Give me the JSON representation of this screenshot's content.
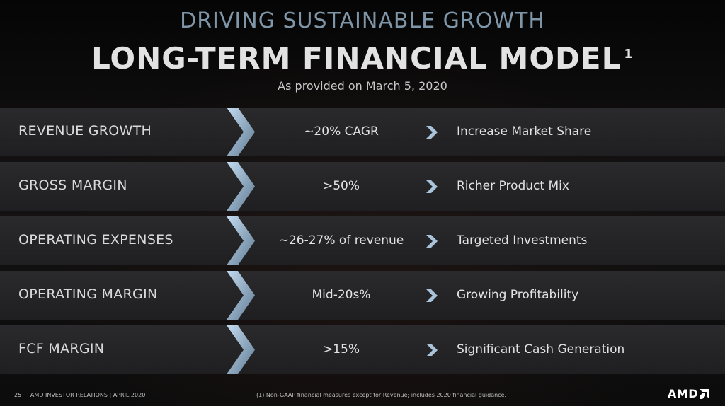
{
  "header": {
    "kicker": "DRIVING SUSTAINABLE GROWTH",
    "title": "LONG-TERM FINANCIAL MODEL",
    "footnote_marker": "1",
    "subtitle": "As provided on March 5, 2020"
  },
  "rows": [
    {
      "label": "REVENUE GROWTH",
      "value": "~20% CAGR",
      "outcome": "Increase Market Share"
    },
    {
      "label": "GROSS MARGIN",
      "value": ">50%",
      "outcome": "Richer Product Mix"
    },
    {
      "label": "OPERATING EXPENSES",
      "value": "~26-27% of revenue",
      "outcome": "Targeted Investments"
    },
    {
      "label": "OPERATING MARGIN",
      "value": "Mid-20s%",
      "outcome": "Growing Profitability"
    },
    {
      "label": "FCF MARGIN",
      "value": ">15%",
      "outcome": "Significant Cash Generation"
    }
  ],
  "footer": {
    "page_number": "25",
    "source": "AMD INVESTOR RELATIONS | APRIL 2020",
    "note": "(1) Non-GAAP financial measures except for Revenue; includes 2020 financial guidance.",
    "logo": "AMD"
  },
  "icons": {
    "row_chevron": "chevron-right-icon",
    "value_chevron": "chevron-right-icon",
    "logo_mark": "amd-arrow-logo"
  },
  "colors": {
    "kicker": "#7f95a8",
    "chevron_light": "#b8d2e8",
    "chevron_dark": "#5e7a93",
    "row_bg": "#262628"
  }
}
